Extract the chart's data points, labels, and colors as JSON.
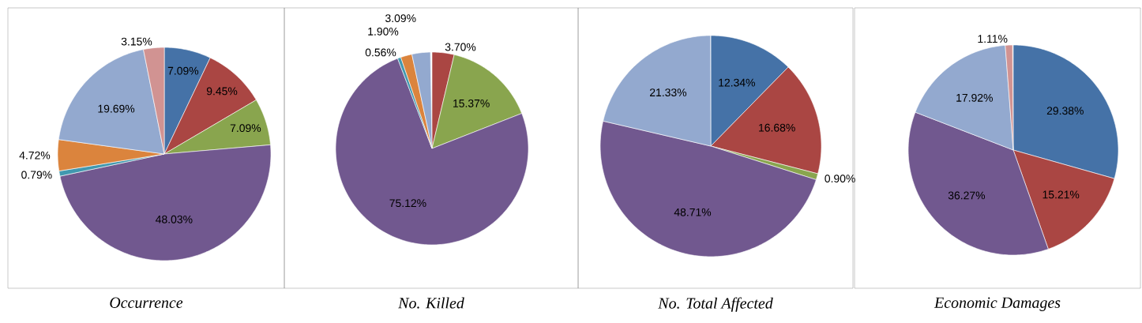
{
  "chart_data": [
    {
      "type": "pie",
      "title": "Occurrence",
      "categories": [
        null,
        null,
        null,
        null,
        null,
        null,
        null,
        null
      ],
      "values": [
        7.09,
        9.45,
        7.09,
        48.03,
        0.79,
        4.72,
        19.69,
        3.15
      ],
      "colors": [
        "#4572a7",
        "#aa4643",
        "#89a54e",
        "#71588f",
        "#4198af",
        "#db843d",
        "#93a9cf",
        "#d19392"
      ],
      "value_labels": [
        "7.09%",
        "9.45%",
        "7.09%",
        "48.03%",
        "0.79%",
        "4.72%",
        "19.69%",
        "3.15%"
      ]
    },
    {
      "type": "pie",
      "title": "No. Killed",
      "categories": [
        null,
        null,
        null,
        null,
        null,
        null
      ],
      "values": [
        3.7,
        15.37,
        75.12,
        0.56,
        1.9,
        3.09
      ],
      "colors": [
        "#aa4643",
        "#89a54e",
        "#71588f",
        "#4198af",
        "#db843d",
        "#93a9cf"
      ],
      "value_labels": [
        "3.70%",
        "15.37%",
        "75.12%",
        "0.56%",
        "1.90%",
        "3.09%"
      ]
    },
    {
      "type": "pie",
      "title": "No. Total Affected",
      "categories": [
        null,
        null,
        null,
        null,
        null
      ],
      "values": [
        12.34,
        16.68,
        0.9,
        48.71,
        21.33
      ],
      "colors": [
        "#4572a7",
        "#aa4643",
        "#89a54e",
        "#71588f",
        "#93a9cf"
      ],
      "value_labels": [
        "12.34%",
        "16.68%",
        "0.90%",
        "48.71%",
        "21.33%"
      ]
    },
    {
      "type": "pie",
      "title": "Economic Damages",
      "categories": [
        null,
        null,
        null,
        null,
        null
      ],
      "values": [
        29.38,
        15.21,
        36.27,
        17.92,
        1.11
      ],
      "colors": [
        "#4572a7",
        "#aa4643",
        "#71588f",
        "#93a9cf",
        "#d19392"
      ],
      "value_labels": [
        "29.38%",
        "15.21%",
        "36.27%",
        "17.92%",
        "1.11%"
      ]
    }
  ]
}
